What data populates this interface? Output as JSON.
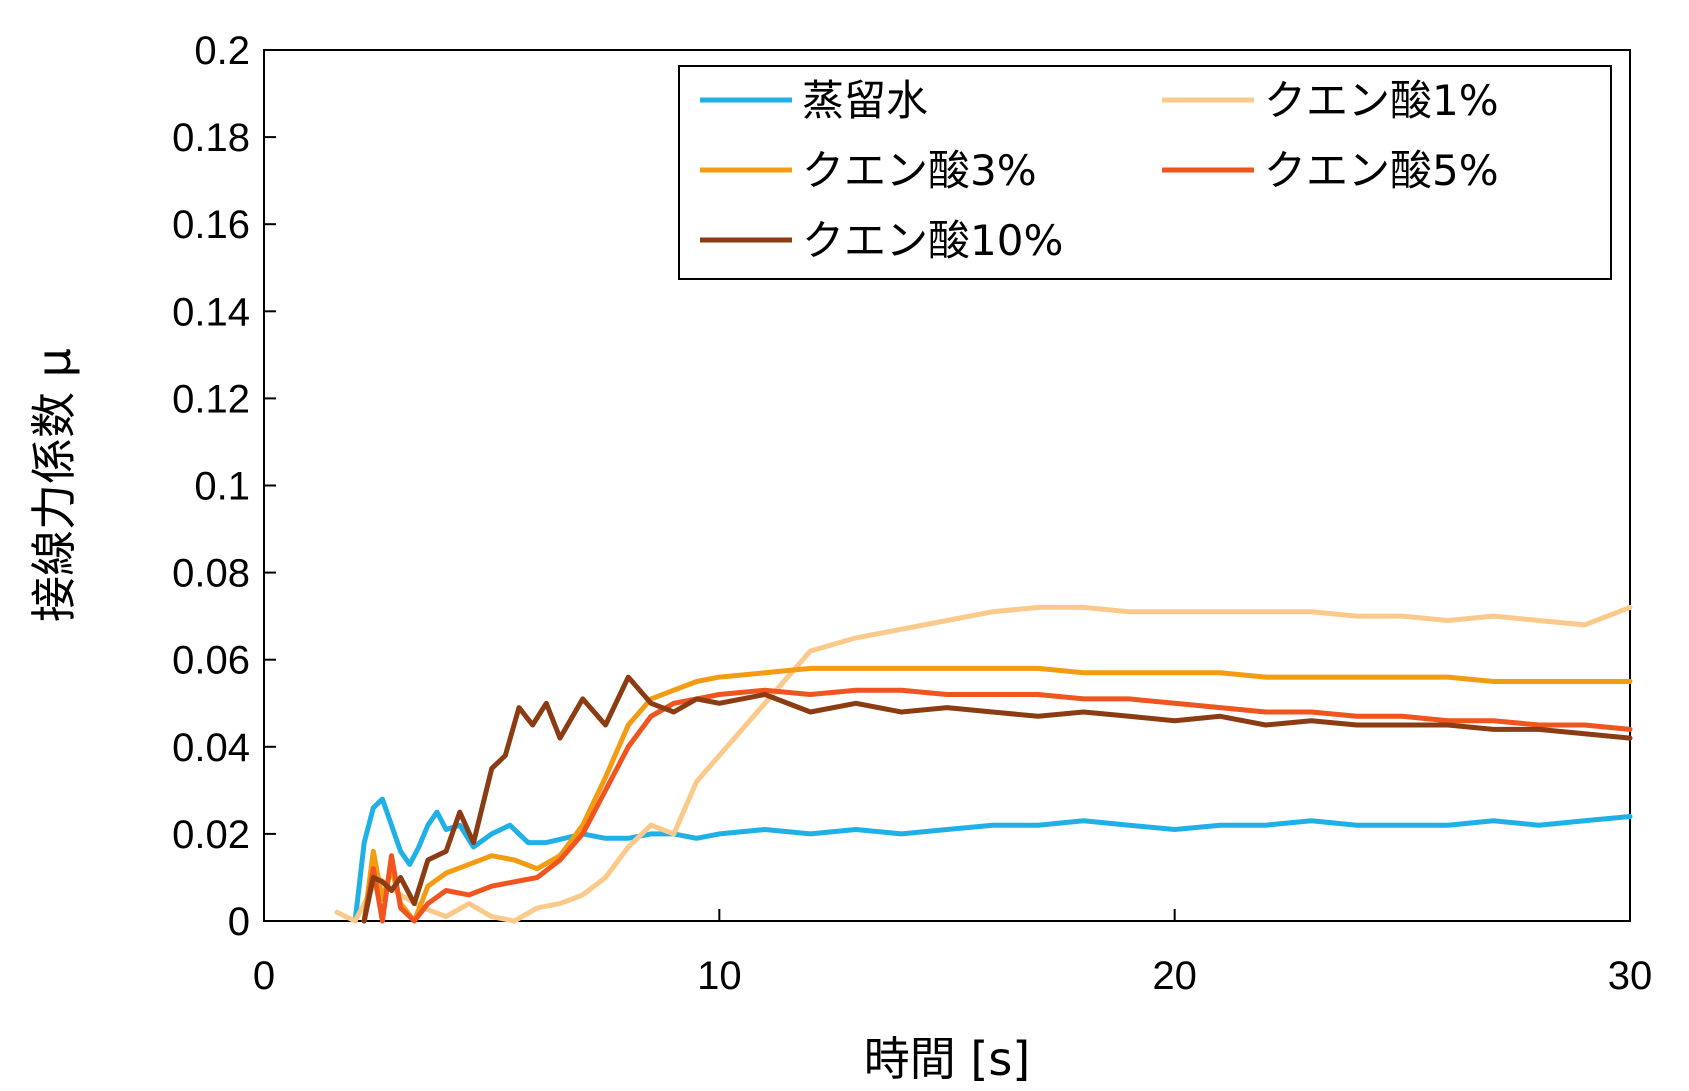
{
  "chart_data": {
    "type": "line",
    "title": "",
    "xlabel": "時間 [s]",
    "ylabel": "接線力係数 μ",
    "xlim": [
      0,
      30
    ],
    "ylim": [
      0,
      0.2
    ],
    "xticks": [
      0,
      10,
      20,
      30
    ],
    "xtick_labels": [
      "0",
      "10",
      "20",
      "30"
    ],
    "yticks": [
      0,
      0.02,
      0.04,
      0.06,
      0.08,
      0.1,
      0.12,
      0.14,
      0.16,
      0.18,
      0.2
    ],
    "ytick_labels": [
      "0",
      "0.02",
      "0.04",
      "0.06",
      "0.08",
      "0.1",
      "0.12",
      "0.14",
      "0.16",
      "0.18",
      "0.2"
    ],
    "grid": false,
    "legend_position": "top-right",
    "series": [
      {
        "name": "蒸留水",
        "color": "#1fb0e8",
        "x": [
          2.0,
          2.2,
          2.4,
          2.6,
          2.8,
          3.0,
          3.2,
          3.4,
          3.6,
          3.8,
          4.0,
          4.3,
          4.6,
          5.0,
          5.4,
          5.8,
          6.2,
          6.6,
          7.0,
          7.5,
          8,
          8.5,
          9,
          9.5,
          10,
          11,
          12,
          13,
          14,
          15,
          16,
          17,
          18,
          19,
          20,
          21,
          22,
          23,
          24,
          25,
          26,
          27,
          28,
          29,
          30
        ],
        "y": [
          0.0,
          0.018,
          0.026,
          0.028,
          0.022,
          0.016,
          0.013,
          0.017,
          0.022,
          0.025,
          0.021,
          0.022,
          0.017,
          0.02,
          0.022,
          0.018,
          0.018,
          0.019,
          0.02,
          0.019,
          0.019,
          0.02,
          0.02,
          0.019,
          0.02,
          0.021,
          0.02,
          0.021,
          0.02,
          0.021,
          0.022,
          0.022,
          0.023,
          0.022,
          0.021,
          0.022,
          0.022,
          0.023,
          0.022,
          0.022,
          0.022,
          0.023,
          0.022,
          0.023,
          0.024
        ]
      },
      {
        "name": "クエン酸1%",
        "color": "#fbc98a",
        "x": [
          1.6,
          2.0,
          2.5,
          3.0,
          3.5,
          4.0,
          4.5,
          5.0,
          5.5,
          6.0,
          6.5,
          7.0,
          7.5,
          8.0,
          8.5,
          9.0,
          9.5,
          10.0,
          10.5,
          11,
          11.5,
          12,
          13,
          14,
          15,
          16,
          17,
          18,
          19,
          20,
          21,
          22,
          23,
          24,
          25,
          26,
          27,
          28,
          29,
          30
        ],
        "y": [
          0.002,
          0.0,
          0.01,
          0.006,
          0.003,
          0.001,
          0.004,
          0.001,
          0.0,
          0.003,
          0.004,
          0.006,
          0.01,
          0.017,
          0.022,
          0.02,
          0.032,
          0.038,
          0.044,
          0.05,
          0.056,
          0.062,
          0.065,
          0.067,
          0.069,
          0.071,
          0.072,
          0.072,
          0.071,
          0.071,
          0.071,
          0.071,
          0.071,
          0.07,
          0.07,
          0.069,
          0.07,
          0.069,
          0.068,
          0.072
        ]
      },
      {
        "name": "クエン酸3%",
        "color": "#f39c12",
        "x": [
          2.2,
          2.4,
          2.6,
          2.8,
          3.0,
          3.3,
          3.6,
          4.0,
          4.5,
          5.0,
          5.5,
          6.0,
          6.5,
          7.0,
          7.5,
          8.0,
          8.5,
          9.0,
          9.5,
          10,
          11,
          12,
          13,
          14,
          15,
          16,
          17,
          18,
          19,
          20,
          21,
          22,
          23,
          24,
          25,
          26,
          27,
          28,
          29,
          30
        ],
        "y": [
          0.0,
          0.016,
          0.005,
          0.012,
          0.004,
          0.0,
          0.008,
          0.011,
          0.013,
          0.015,
          0.014,
          0.012,
          0.015,
          0.022,
          0.033,
          0.045,
          0.051,
          0.053,
          0.055,
          0.056,
          0.057,
          0.058,
          0.058,
          0.058,
          0.058,
          0.058,
          0.058,
          0.057,
          0.057,
          0.057,
          0.057,
          0.056,
          0.056,
          0.056,
          0.056,
          0.056,
          0.055,
          0.055,
          0.055,
          0.055
        ]
      },
      {
        "name": "クエン酸5%",
        "color": "#f0541f",
        "x": [
          2.2,
          2.4,
          2.6,
          2.8,
          3.0,
          3.3,
          3.6,
          4.0,
          4.5,
          5.0,
          5.5,
          6.0,
          6.5,
          7.0,
          7.5,
          8.0,
          8.5,
          9.0,
          9.5,
          10,
          11,
          12,
          13,
          14,
          15,
          16,
          17,
          18,
          19,
          20,
          21,
          22,
          23,
          24,
          25,
          26,
          27,
          28,
          29,
          30
        ],
        "y": [
          0.0,
          0.012,
          0.0,
          0.015,
          0.003,
          0.0,
          0.004,
          0.007,
          0.006,
          0.008,
          0.009,
          0.01,
          0.014,
          0.02,
          0.03,
          0.04,
          0.047,
          0.05,
          0.051,
          0.052,
          0.053,
          0.052,
          0.053,
          0.053,
          0.052,
          0.052,
          0.052,
          0.051,
          0.051,
          0.05,
          0.049,
          0.048,
          0.048,
          0.047,
          0.047,
          0.046,
          0.046,
          0.045,
          0.045,
          0.044
        ]
      },
      {
        "name": "クエン酸10%",
        "color": "#8b3c13",
        "x": [
          2.2,
          2.4,
          2.6,
          2.8,
          3.0,
          3.3,
          3.6,
          4.0,
          4.3,
          4.6,
          5.0,
          5.3,
          5.6,
          5.9,
          6.2,
          6.5,
          7.0,
          7.5,
          8.0,
          8.5,
          9.0,
          9.5,
          10,
          11,
          12,
          13,
          14,
          15,
          16,
          17,
          18,
          19,
          20,
          21,
          22,
          23,
          24,
          25,
          26,
          27,
          28,
          29,
          30
        ],
        "y": [
          0.0,
          0.01,
          0.009,
          0.007,
          0.01,
          0.004,
          0.014,
          0.016,
          0.025,
          0.018,
          0.035,
          0.038,
          0.049,
          0.045,
          0.05,
          0.042,
          0.051,
          0.045,
          0.056,
          0.05,
          0.048,
          0.051,
          0.05,
          0.052,
          0.048,
          0.05,
          0.048,
          0.049,
          0.048,
          0.047,
          0.048,
          0.047,
          0.046,
          0.047,
          0.045,
          0.046,
          0.045,
          0.045,
          0.045,
          0.044,
          0.044,
          0.043,
          0.042
        ]
      }
    ]
  }
}
